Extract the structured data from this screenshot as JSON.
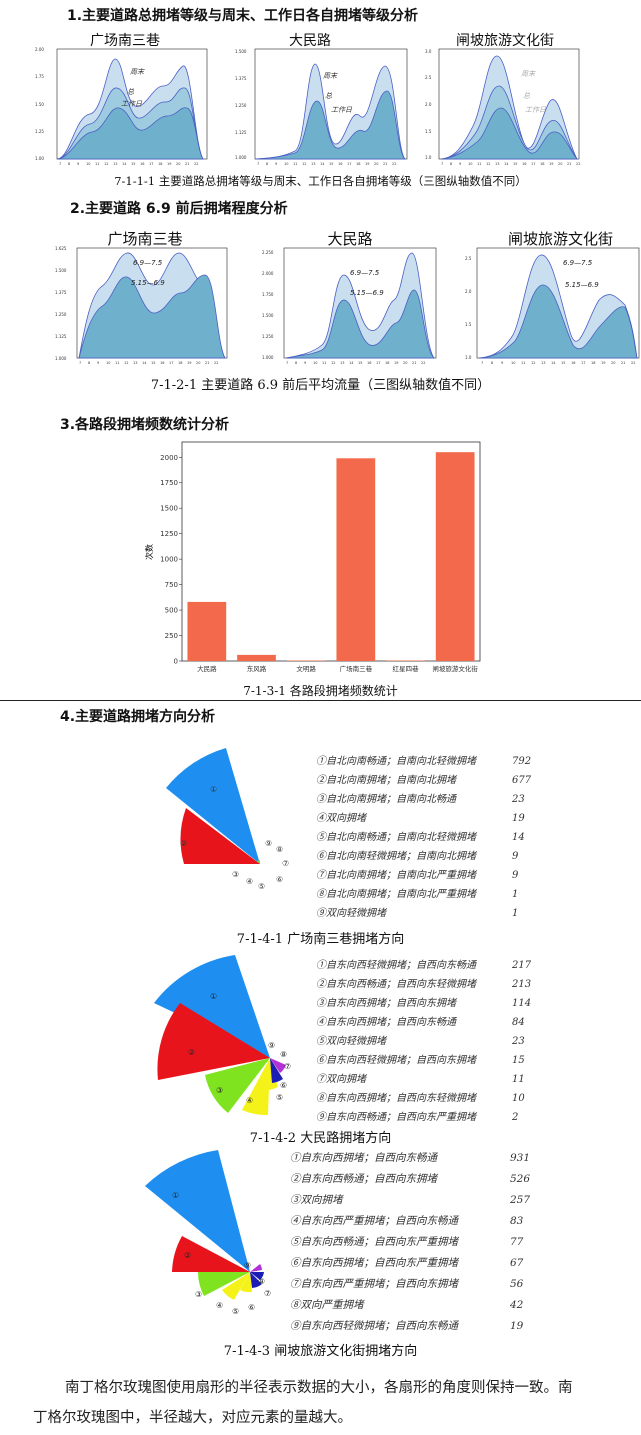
{
  "sections": [
    {
      "title": "1.主要道路总拥堵等级与周末、工作日各自拥堵等级分析"
    },
    {
      "title": "2.主要道路 6.9 前后拥堵程度分析"
    },
    {
      "title": "3.各路段拥堵频数统计分析"
    },
    {
      "title": "4.主要道路拥堵方向分析"
    }
  ],
  "fig1": {
    "caption": "7-1-1-1  主要道路总拥堵等级与周末、工作日各自拥堵等级（三图纵轴数值不同）",
    "panels": [
      {
        "title": "广场南三巷",
        "yticks": [
          "2.00",
          "1.75",
          "1.50",
          "1.25",
          "1.00"
        ],
        "labels": [
          "周末",
          "总",
          "工作日"
        ]
      },
      {
        "title": "大民路",
        "yticks": [
          "1.500",
          "1.375",
          "1.250",
          "1.125",
          "1.000"
        ],
        "labels": [
          "周末",
          "总",
          "工作日"
        ]
      },
      {
        "title": "闸坡旅游文化街",
        "yticks": [
          "3.0",
          "2.5",
          "2.0",
          "1.5",
          "1.0"
        ],
        "labels": [
          "周末",
          "总",
          "工作日"
        ]
      }
    ],
    "xticks": [
      "7",
      "8",
      "9",
      "10",
      "11",
      "12",
      "13",
      "14",
      "15",
      "16",
      "17",
      "18",
      "19",
      "20",
      "21",
      "22"
    ]
  },
  "fig2": {
    "caption": "7-1-2-1  主要道路 6.9 前后平均流量（三图纵轴数值不同）",
    "panels": [
      {
        "title": "广场南三巷",
        "yticks": [
          "1.625",
          "1.500",
          "1.375",
          "1.250",
          "1.125",
          "1.000"
        ]
      },
      {
        "title": "大民路",
        "yticks": [
          "2.250",
          "2.000",
          "1.750",
          "1.500",
          "1.250",
          "1.000"
        ]
      },
      {
        "title": "闸坡旅游文化街",
        "yticks": [
          "2.5",
          "2.0",
          "1.5",
          "1.0"
        ]
      }
    ],
    "labels": [
      "6.9—7.5",
      "5.15—6.9"
    ]
  },
  "fig3": {
    "caption": "7-1-3-1  各路段拥堵频数统计",
    "chart_data": {
      "type": "bar",
      "categories": [
        "大民路",
        "东风路",
        "文明路",
        "广场南三巷",
        "红星四巷",
        "闸坡旅游文化街"
      ],
      "values": [
        580,
        60,
        5,
        1990,
        5,
        2050
      ],
      "ylabel": "次数",
      "ylim": [
        0,
        2150
      ],
      "yticks": [
        0,
        250,
        500,
        750,
        1000,
        1250,
        1500,
        1750,
        2000
      ],
      "bar_color": "#f26a4b"
    }
  },
  "fig4": [
    {
      "caption": "7-1-4-1  广场南三巷拥堵方向",
      "items": [
        {
          "label": "①自北向南畅通；自南向北轻微拥堵",
          "value": "792"
        },
        {
          "label": "②自北向南拥堵；自南向北拥堵",
          "value": "677"
        },
        {
          "label": "③自北向南拥堵；自南向北畅通",
          "value": "23"
        },
        {
          "label": "④双向拥堵",
          "value": "19"
        },
        {
          "label": "⑤自北向南畅通；自南向北轻微拥堵",
          "value": "14"
        },
        {
          "label": "⑥自北向南轻微拥堵；自南向北拥堵",
          "value": "9"
        },
        {
          "label": "⑦自北向南拥堵；自南向北严重拥堵",
          "value": "9"
        },
        {
          "label": "⑧自北向南拥堵；自南向北严重拥堵",
          "value": "1"
        },
        {
          "label": "⑨双向轻微拥堵",
          "value": "1"
        }
      ]
    },
    {
      "caption": "7-1-4-2  大民路拥堵方向",
      "items": [
        {
          "label": "①自东向西轻微拥堵；自西向东畅通",
          "value": "217"
        },
        {
          "label": "②自东向西畅通；自西向东轻微拥堵",
          "value": "213"
        },
        {
          "label": "③自东向西拥堵；自西向东拥堵",
          "value": "114"
        },
        {
          "label": "④自东向西拥堵；自西向东畅通",
          "value": "84"
        },
        {
          "label": "⑤双向轻微拥堵",
          "value": "23"
        },
        {
          "label": "⑥自东向西轻微拥堵；自西向东拥堵",
          "value": "15"
        },
        {
          "label": "⑦双向拥堵",
          "value": "11"
        },
        {
          "label": "⑧自东向西拥堵；自西向东轻微拥堵",
          "value": "10"
        },
        {
          "label": "⑨自东向西畅通；自西向东严重拥堵",
          "value": "2"
        }
      ]
    },
    {
      "caption": "7-1-4-3  闸坡旅游文化街拥堵方向",
      "items": [
        {
          "label": "①自东向西拥堵；自西向东畅通",
          "value": "931"
        },
        {
          "label": "②自东向西畅通；自西向东拥堵",
          "value": "526"
        },
        {
          "label": "③双向拥堵",
          "value": "257"
        },
        {
          "label": "④自东向西严重拥堵；自西向东畅通",
          "value": "83"
        },
        {
          "label": "⑤自东向西畅通；自西向东严重拥堵",
          "value": "77"
        },
        {
          "label": "⑥自东向西拥堵；自西向东严重拥堵",
          "value": "67"
        },
        {
          "label": "⑦自东向西严重拥堵；自西向东拥堵",
          "value": "56"
        },
        {
          "label": "⑧双向严重拥堵",
          "value": "42"
        },
        {
          "label": "⑨自东向西轻微拥堵；自西向东畅通",
          "value": "19"
        }
      ]
    }
  ],
  "paragraph": {
    "line1": "南丁格尔玫瑰图使用扇形的半径表示数据的大小，各扇形的角度则保持一致。南",
    "line2": "丁格尔玫瑰图中，半径越大，对应元素的量越大。"
  },
  "colors": {
    "area_dark": "#6fb1cc",
    "area_light": "#c9dff0",
    "line": "#4a5fc4",
    "blue": "#1e8ff0",
    "red": "#e8141b",
    "green": "#7fe31f",
    "yellow": "#f5f21a",
    "navy": "#1c1db5",
    "purple": "#b431d6"
  }
}
